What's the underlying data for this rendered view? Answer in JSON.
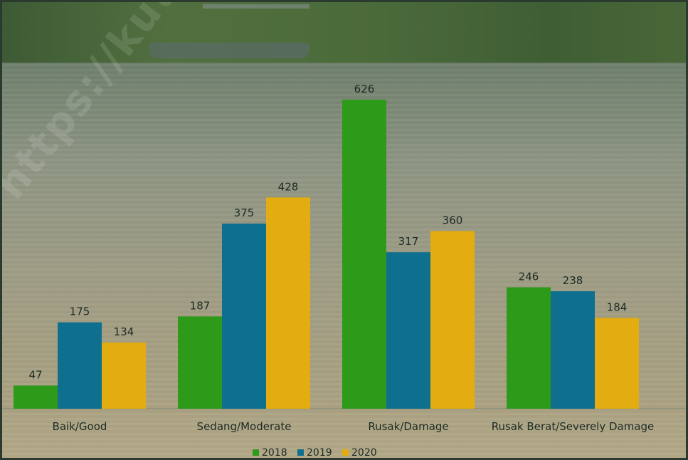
{
  "watermark": "https://kutimkab",
  "colors": {
    "2018": "#2e9a1a",
    "2019": "#0f6f8e",
    "2020": "#e3ac10"
  },
  "chart_data": {
    "type": "bar",
    "categories": [
      "Baik/Good",
      "Sedang/Moderate",
      "Rusak/Damage",
      "Rusak Berat/Severely Damage"
    ],
    "series": [
      {
        "name": "2018",
        "values": [
          47,
          187,
          626,
          246
        ]
      },
      {
        "name": "2019",
        "values": [
          175,
          375,
          317,
          238
        ]
      },
      {
        "name": "2020",
        "values": [
          134,
          428,
          360,
          184
        ]
      }
    ],
    "ylim": [
      0,
      626
    ],
    "grid": false,
    "legend": "bottom-center",
    "data_labels": true
  }
}
